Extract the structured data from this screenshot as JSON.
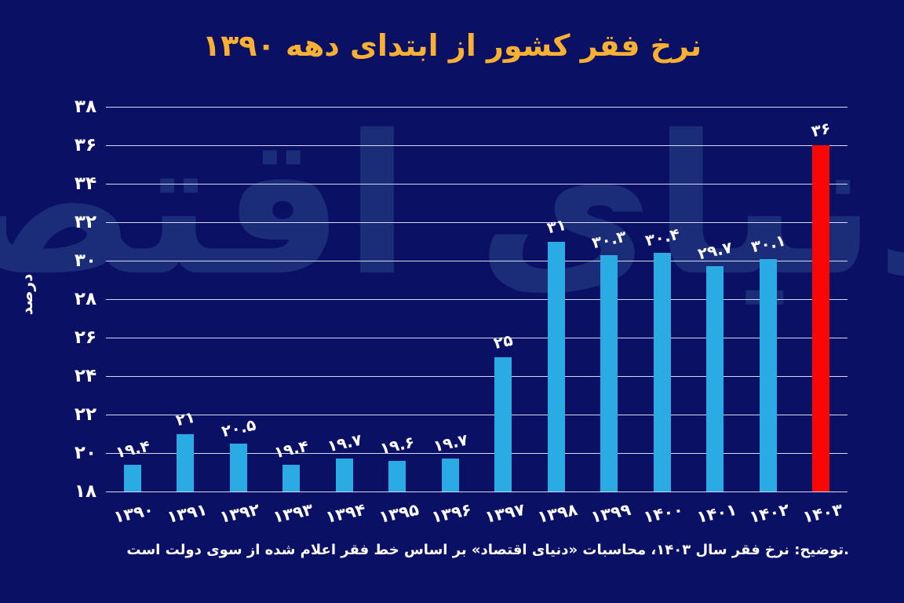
{
  "page_title": "نرخ فقر کشور از ابتدای دهه ۱۳۹۰",
  "colors": {
    "background": "#0a1064",
    "bar": "#2aabe4",
    "highlight_bar": "#f90606",
    "title": "#f9b033",
    "gridline": "#d6daf0",
    "text": "#ffffff",
    "watermark": "#1b2c78"
  },
  "watermark": {
    "text": "دنیای اقتصاد"
  },
  "chart_data": {
    "type": "bar",
    "title": "نرخ فقر کشور از ابتدای دهه ۱۳۹۰",
    "xlabel": "",
    "ylabel": "درصد",
    "categories": [
      "۱۳۹۰",
      "۱۳۹۱",
      "۱۳۹۲",
      "۱۳۹۳",
      "۱۳۹۴",
      "۱۳۹۵",
      "۱۳۹۶",
      "۱۳۹۷",
      "۱۳۹۸",
      "۱۳۹۹",
      "۱۴۰۰",
      "۱۴۰۱",
      "۱۴۰۲",
      "۱۴۰۳"
    ],
    "values": [
      19.4,
      21,
      20.5,
      19.4,
      19.7,
      19.6,
      19.7,
      25,
      31,
      30.3,
      30.4,
      29.7,
      30.1,
      36
    ],
    "value_labels": [
      "۱۹.۴",
      "۲۱",
      "۲۰.۵",
      "۱۹.۴",
      "۱۹.۷",
      "۱۹.۶",
      "۱۹.۷",
      "۲۵",
      "۳۱",
      "۳۰.۳",
      "۳۰.۴",
      "۲۹.۷",
      "۳۰.۱",
      "۳۶"
    ],
    "highlight_index": 13,
    "ylim": [
      18,
      38
    ],
    "yticks": [
      38,
      36,
      34,
      32,
      30,
      28,
      26,
      24,
      22,
      20,
      18
    ],
    "ytick_labels": [
      "۳۸",
      "۳۶",
      "۳۴",
      "۳۲",
      "۳۰",
      "۲۸",
      "۲۶",
      "۲۴",
      "۲۲",
      "۲۰",
      "۱۸"
    ],
    "grid": true,
    "legend_position": "none"
  },
  "footnote": ".توضیح: نرخ فقر سال ۱۴۰۳، محاسبات «دنیای اقتصاد» بر اساس خط فقر اعلام شده از سوی دولت است"
}
